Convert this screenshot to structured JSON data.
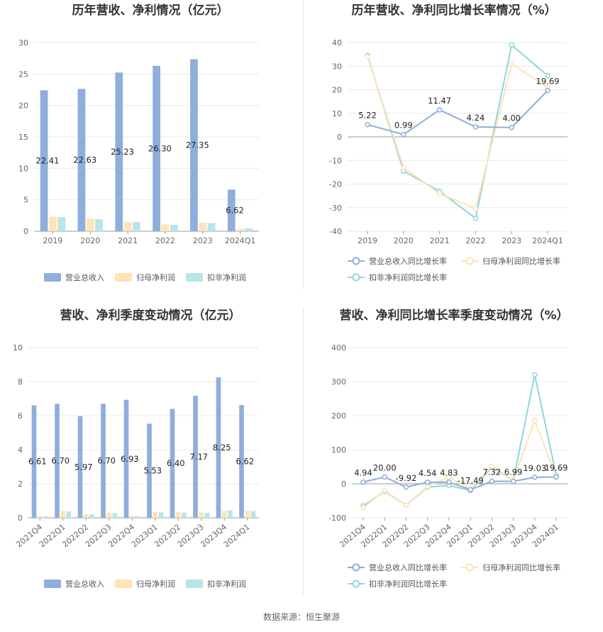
{
  "colors": {
    "revenue": "#8eaedc",
    "parent_profit": "#fde3b6",
    "non_recurring": "#b7e5e8",
    "line_revenue": "#8eaedc",
    "line_parent": "#fde3b6",
    "line_nonrec": "#8fd6dc",
    "grid": "#e8e8e8",
    "axis": "#999999"
  },
  "footer": "数据来源：恒生聚源",
  "chart_data": [
    {
      "type": "bar",
      "title": "历年营收、净利情况（亿元）",
      "categories": [
        "2019",
        "2020",
        "2021",
        "2022",
        "2023",
        "2024Q1"
      ],
      "ylim": [
        0,
        30
      ],
      "yticks": [
        0,
        5,
        10,
        15,
        20,
        25,
        30
      ],
      "series": [
        {
          "name": "营业总收入",
          "values": [
            22.41,
            22.63,
            25.23,
            26.3,
            27.35,
            6.62
          ],
          "labels": [
            "22.41",
            "22.63",
            "25.23",
            "26.30",
            "27.35",
            "6.62"
          ]
        },
        {
          "name": "归母净利润",
          "values": [
            2.3,
            2.0,
            1.5,
            1.1,
            1.35,
            0.4
          ]
        },
        {
          "name": "扣非净利润",
          "values": [
            2.25,
            1.9,
            1.45,
            1.0,
            1.3,
            0.45
          ]
        }
      ],
      "legend": "bottom"
    },
    {
      "type": "line",
      "title": "历年营收、净利同比增长率情况（%）",
      "categories": [
        "2019",
        "2020",
        "2021",
        "2022",
        "2023",
        "2024Q1"
      ],
      "ylim": [
        -40,
        40
      ],
      "yticks": [
        -40,
        -30,
        -20,
        -10,
        0,
        10,
        20,
        30,
        40
      ],
      "series": [
        {
          "name": "营业总收入同比增长率",
          "values": [
            5.22,
            0.99,
            11.47,
            4.24,
            4.0,
            19.69
          ],
          "labels": [
            "5.22",
            "0.99",
            "11.47",
            "4.24",
            "4.00",
            "19.69"
          ]
        },
        {
          "name": "归母净利润同比增长率",
          "values": [
            34,
            -13,
            -24,
            -30.5,
            31,
            21
          ]
        },
        {
          "name": "扣非净利润同比增长率",
          "values": [
            34.5,
            -14.5,
            -23,
            -34.5,
            39,
            26
          ]
        }
      ],
      "legend": "bottom"
    },
    {
      "type": "bar",
      "title": "营收、净利季度变动情况（亿元）",
      "categories": [
        "2021Q4",
        "2022Q1",
        "2022Q2",
        "2022Q3",
        "2022Q4",
        "2023Q1",
        "2023Q2",
        "2023Q3",
        "2023Q4",
        "2024Q1"
      ],
      "ylim": [
        0,
        10
      ],
      "yticks": [
        0,
        2,
        4,
        6,
        8,
        10
      ],
      "series": [
        {
          "name": "营业总收入",
          "values": [
            6.61,
            6.7,
            5.97,
            6.7,
            6.93,
            5.53,
            6.4,
            7.17,
            8.25,
            6.62
          ],
          "labels": [
            "6.61",
            "6.70",
            "5.97",
            "6.70",
            "6.93",
            "5.53",
            "6.40",
            "7.17",
            "8.25",
            "6.62"
          ]
        },
        {
          "name": "归母净利润",
          "values": [
            0.1,
            0.4,
            0.2,
            0.3,
            0.12,
            0.33,
            0.33,
            0.32,
            0.4,
            0.4
          ]
        },
        {
          "name": "扣非净利润",
          "values": [
            0.08,
            0.38,
            0.2,
            0.28,
            0.1,
            0.32,
            0.3,
            0.3,
            0.43,
            0.4
          ]
        }
      ],
      "legend": "bottom"
    },
    {
      "type": "line",
      "title": "营收、净利同比增长率季度变动情况（%）",
      "categories": [
        "2021Q4",
        "2022Q1",
        "2022Q2",
        "2022Q3",
        "2022Q4",
        "2023Q1",
        "2023Q2",
        "2023Q3",
        "2023Q4",
        "2024Q1"
      ],
      "ylim": [
        -100,
        400
      ],
      "yticks": [
        -100,
        0,
        100,
        200,
        300,
        400
      ],
      "series": [
        {
          "name": "营业总收入同比增长率",
          "values": [
            4.94,
            20.0,
            -9.92,
            4.54,
            4.83,
            -17.49,
            7.32,
            6.99,
            19.03,
            19.69
          ],
          "labels": [
            "4.94",
            "20.00",
            "-9.92",
            "4.54",
            "4.83",
            "-17.49",
            "7.32",
            "6.99",
            "19.03",
            "19.69"
          ]
        },
        {
          "name": "归母净利润同比增长率",
          "values": [
            -70,
            -20,
            -63,
            -8,
            20,
            -17,
            52,
            10,
            185,
            20
          ]
        },
        {
          "name": "扣非净利润同比增长率",
          "values": [
            -65,
            -22,
            -63,
            -10,
            -5,
            -20,
            48,
            10,
            320,
            25
          ]
        }
      ],
      "legend": "bottom"
    }
  ]
}
